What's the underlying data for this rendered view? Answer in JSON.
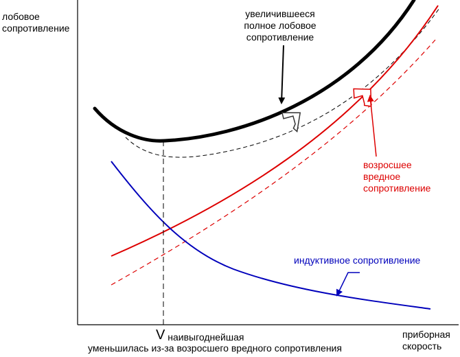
{
  "axes": {
    "y_label_line1": "лобовое",
    "y_label_line2": "сопротивление",
    "x_label_line1": "приборная",
    "x_label_line2": "скорость"
  },
  "annotations": {
    "increased_total": {
      "line1": "увеличившееся",
      "line2": "полное лобовое",
      "line3": "сопротивление",
      "color": "#000000"
    },
    "increased_parasite": {
      "line1": "возросшее",
      "line2": "вредное",
      "line3": "сопротивление",
      "color": "#dd0000"
    },
    "induced": {
      "text": "индуктивное сопротивление",
      "color": "#0000bb"
    },
    "v_symbol": "V",
    "v_subscript": "наивыгоднейшая",
    "v_note": "уменьшилась из-за возросшего вредного сопротивления"
  },
  "colors": {
    "total_increased": "#000000",
    "total_original": "#000000",
    "parasite_increased": "#dd0000",
    "parasite_original": "#dd0000",
    "induced": "#0000bb"
  }
}
